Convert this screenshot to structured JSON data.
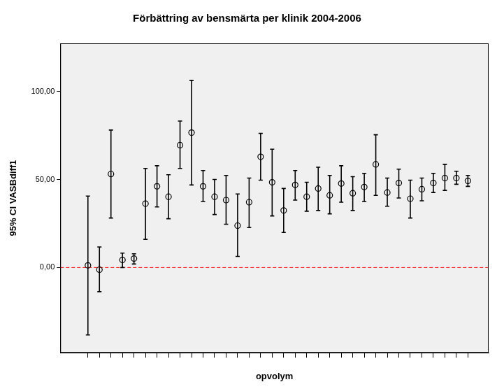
{
  "chart_data": {
    "type": "scatter",
    "title": "Förbättring av bensmärta per klinik 2004-2006",
    "x_label": "opvolym",
    "y_label": "95% CI VASBdiff1",
    "categories": [
      null,
      null,
      null,
      null,
      null,
      null,
      null,
      null,
      null,
      null,
      null,
      null,
      null,
      null,
      null,
      null,
      null,
      null,
      null,
      null,
      null,
      null,
      null,
      null,
      null,
      null,
      null,
      null,
      null,
      null,
      null,
      null,
      null,
      null
    ],
    "values": [
      1.2,
      -1.2,
      53.1,
      4.3,
      5.1,
      36.3,
      46.1,
      40.2,
      69.5,
      76.6,
      46.1,
      40.2,
      38.3,
      23.8,
      37.1,
      62.9,
      48.4,
      32.4,
      46.9,
      40.2,
      44.9,
      41.0,
      47.7,
      42.2,
      45.7,
      58.6,
      42.6,
      48.0,
      39.1,
      44.5,
      48.0,
      50.8,
      50.8,
      49.2
    ],
    "error_bars": {
      "lower": [
        -38.3,
        -13.7,
        28.1,
        0.0,
        2.0,
        16.0,
        34.4,
        27.7,
        56.3,
        46.9,
        37.5,
        30.1,
        24.6,
        6.3,
        22.7,
        49.6,
        29.3,
        19.9,
        38.3,
        32.0,
        32.4,
        30.5,
        37.1,
        32.4,
        37.5,
        41.0,
        34.8,
        39.5,
        28.1,
        37.9,
        42.6,
        43.8,
        47.3,
        46.1
      ],
      "upper": [
        40.6,
        11.7,
        78.1,
        8.2,
        7.8,
        56.3,
        57.8,
        52.7,
        83.2,
        106.3,
        55.1,
        50.0,
        52.3,
        41.8,
        50.8,
        76.2,
        67.2,
        44.9,
        55.1,
        48.4,
        57.0,
        52.3,
        57.8,
        51.6,
        53.5,
        75.4,
        50.8,
        55.9,
        49.6,
        50.8,
        53.5,
        58.6,
        54.7,
        52.3
      ]
    },
    "color": "#000000",
    "marker": "circle",
    "ylim": [
      -48.4,
      127.3
    ],
    "yticks": [
      {
        "value": 0,
        "label": "0,00"
      },
      {
        "value": 50,
        "label": "50,00"
      },
      {
        "value": 100,
        "label": "100,00"
      }
    ],
    "grid": false,
    "tick_labels": "y",
    "reference_line": {
      "value": 0,
      "color": "#ff0000",
      "line_style": "dashed"
    }
  }
}
